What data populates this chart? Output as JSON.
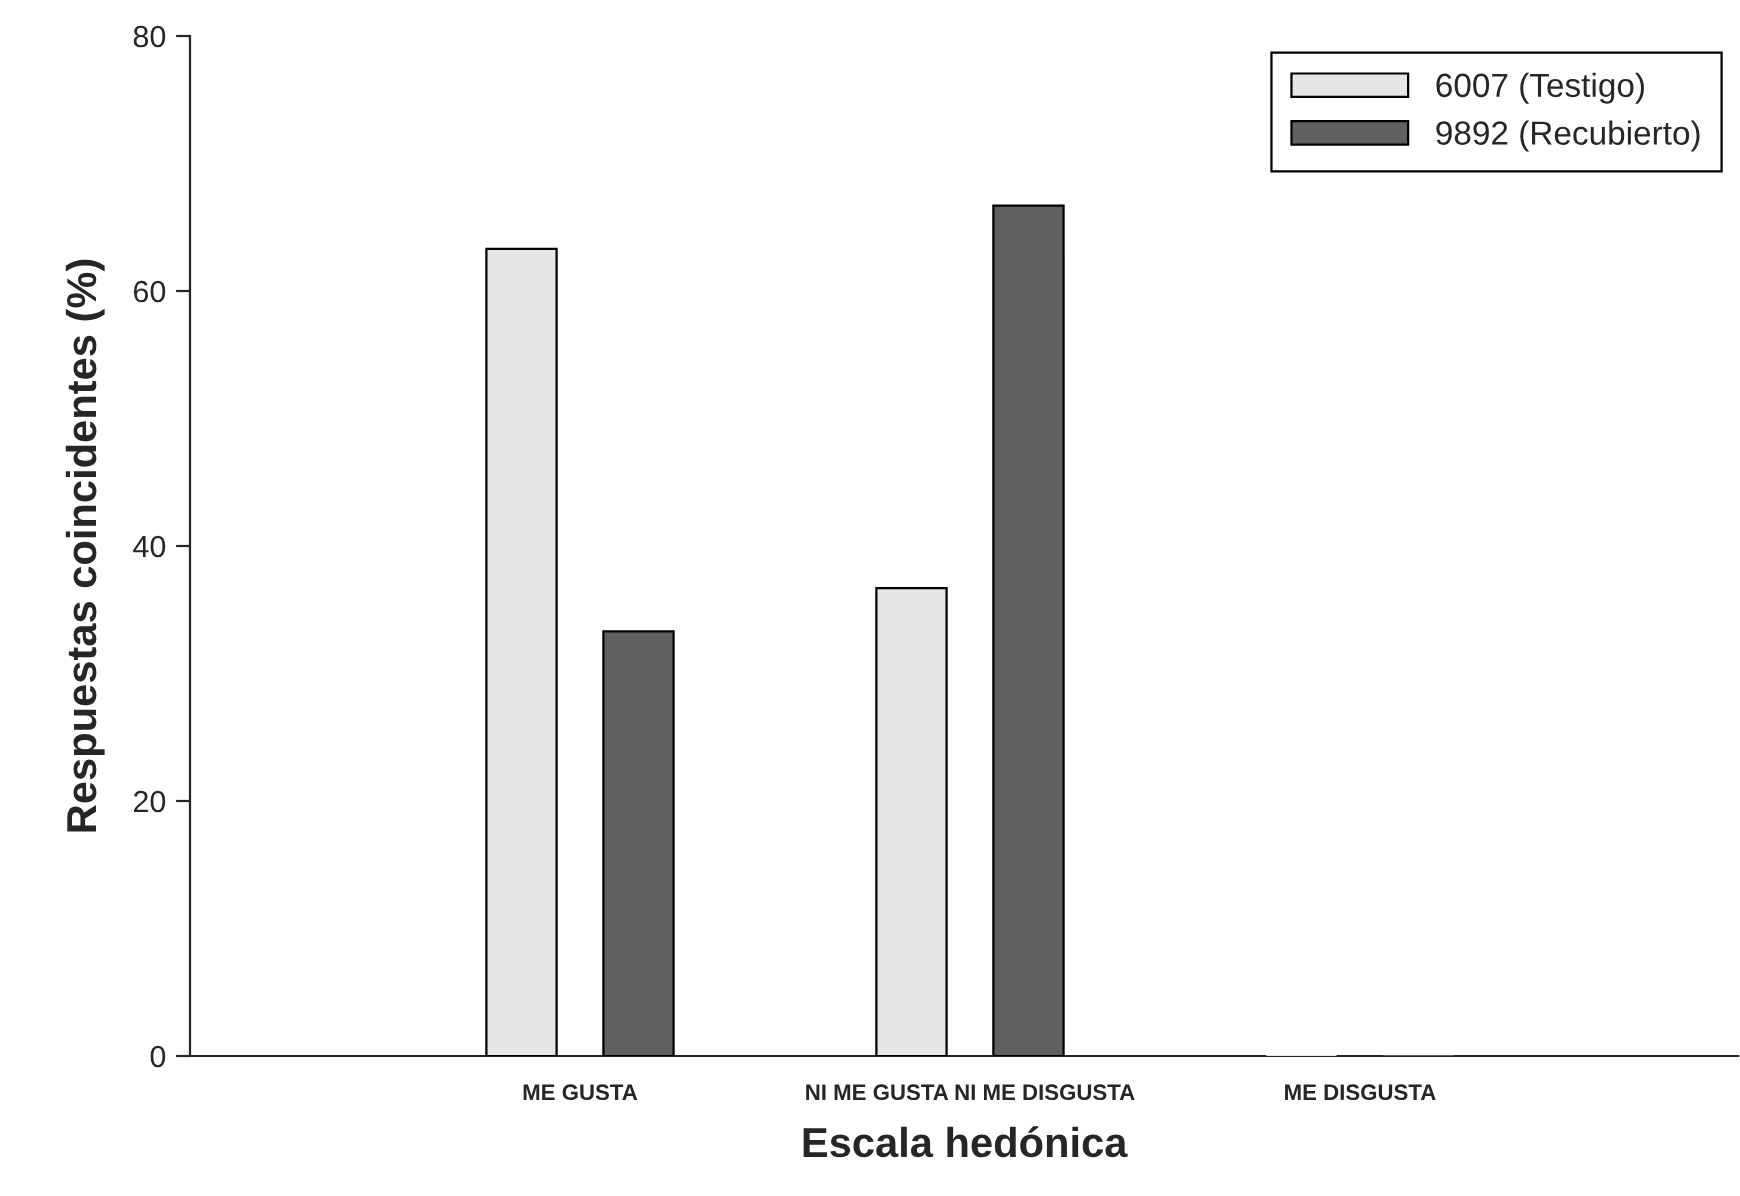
{
  "chart_data": {
    "type": "bar",
    "xlabel": "Escala hedónica",
    "ylabel": "Respuestas coincidentes (%)",
    "categories": [
      "ME GUSTA",
      "NI ME GUSTA NI ME DISGUSTA",
      "ME DISGUSTA"
    ],
    "series": [
      {
        "name": "6007 (Testigo)",
        "color": "#e6e6e6",
        "values": [
          63.3,
          36.7,
          0
        ]
      },
      {
        "name": "9892 (Recubierto)",
        "color": "#606060",
        "values": [
          33.3,
          66.7,
          0
        ]
      }
    ],
    "ylim": [
      0,
      80
    ],
    "yticks": [
      0,
      20,
      40,
      60,
      80
    ],
    "grid": false,
    "legend": "top right"
  }
}
